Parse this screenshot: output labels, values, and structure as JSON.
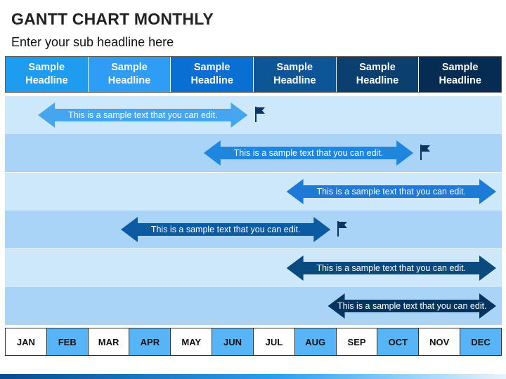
{
  "title": "GANTT CHART MONTHLY",
  "subtitle": "Enter your sub headline here",
  "headers": [
    {
      "label": "Sample Headline",
      "color": "#1e9cf0"
    },
    {
      "label": "Sample Headline",
      "color": "#2f9df5"
    },
    {
      "label": "Sample Headline",
      "color": "#0a6fd2"
    },
    {
      "label": "Sample Headline",
      "color": "#0c5697"
    },
    {
      "label": "Sample Headline",
      "color": "#0a3f6f"
    },
    {
      "label": "Sample Headline",
      "color": "#062c54"
    }
  ],
  "tasks": [
    {
      "text": "This is a sample text that you can edit.",
      "color": "#45a6ef",
      "start_month": "JAN",
      "end_month": "JUN",
      "flag": true
    },
    {
      "text": "This is a sample text that you can edit.",
      "color": "#1e86df",
      "start_month": "MAY",
      "end_month": "OCT",
      "flag": true
    },
    {
      "text": "This is a sample text that you can edit.",
      "color": "#1d7ad6",
      "start_month": "JUL",
      "end_month": "DEC",
      "flag": false
    },
    {
      "text": "This is a sample text that you can edit.",
      "color": "#0b5ba3",
      "start_month": "MAR",
      "end_month": "AUG",
      "flag": true
    },
    {
      "text": "This is a sample text that you can edit.",
      "color": "#0a4a7e",
      "start_month": "JUL",
      "end_month": "DEC",
      "flag": false
    },
    {
      "text": "This is a sample text that you can edit.",
      "color": "#063460",
      "start_month": "AUG",
      "end_month": "DEC",
      "flag": false
    }
  ],
  "months": [
    "JAN",
    "FEB",
    "MAR",
    "APR",
    "MAY",
    "JUN",
    "JUL",
    "AUG",
    "SEP",
    "OCT",
    "NOV",
    "DEC"
  ],
  "flag_color": "#0a3560",
  "bottom_bar_colors": [
    "#0a4a8c",
    "#2aa0f0",
    "#e8f4fd"
  ]
}
